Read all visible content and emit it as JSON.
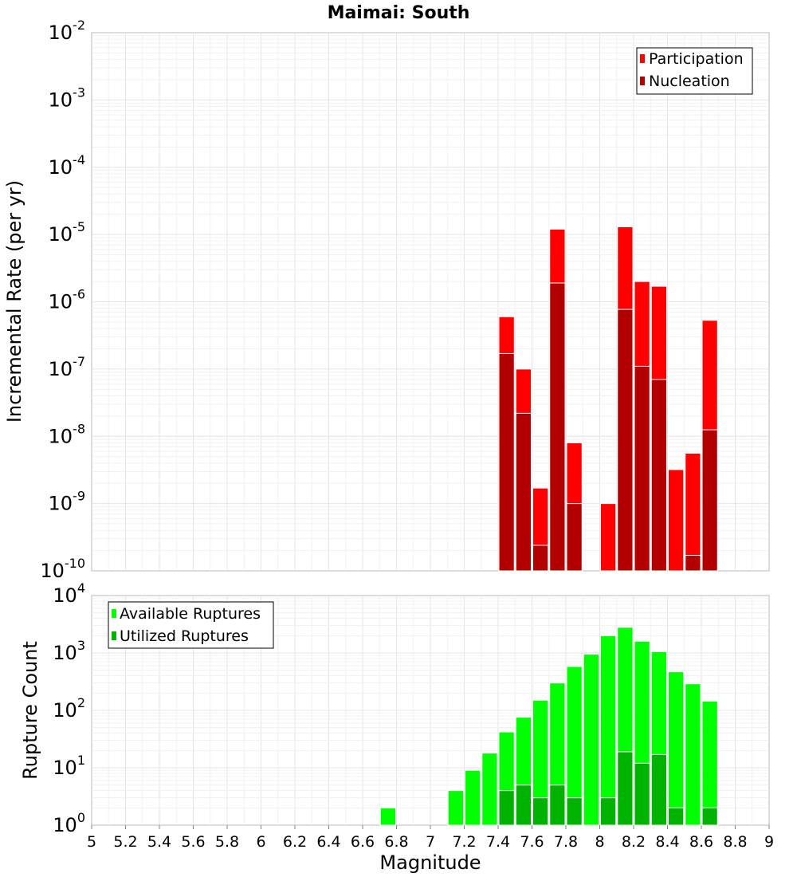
{
  "figure": {
    "title": "Maimai: South"
  },
  "chart_data": [
    {
      "type": "bar",
      "title": "Maimai: South",
      "ylabel": "Incremental Rate (per yr)",
      "xlabel": "",
      "yscale": "log",
      "ylim_exp": [
        -10,
        -2
      ],
      "xlim": [
        5,
        9
      ],
      "grid": true,
      "legend_placement": "top-right",
      "series": [
        {
          "name": "Participation",
          "color": "#ff0000",
          "points": [
            {
              "x": 7.45,
              "y": 6e-07
            },
            {
              "x": 7.55,
              "y": 1e-07
            },
            {
              "x": 7.65,
              "y": 1.7e-09
            },
            {
              "x": 7.75,
              "y": 1.2e-05
            },
            {
              "x": 7.85,
              "y": 8e-09
            },
            {
              "x": 8.05,
              "y": 1e-09
            },
            {
              "x": 8.15,
              "y": 1.3e-05
            },
            {
              "x": 8.25,
              "y": 2e-06
            },
            {
              "x": 8.35,
              "y": 1.7e-06
            },
            {
              "x": 8.45,
              "y": 3.2e-09
            },
            {
              "x": 8.55,
              "y": 5.6e-09
            },
            {
              "x": 8.65,
              "y": 5.3e-07
            }
          ]
        },
        {
          "name": "Nucleation",
          "color": "#b20000",
          "points": [
            {
              "x": 7.45,
              "y": 1.7e-07
            },
            {
              "x": 7.55,
              "y": 2.2e-08
            },
            {
              "x": 7.65,
              "y": 2.4e-10
            },
            {
              "x": 7.75,
              "y": 1.9e-06
            },
            {
              "x": 7.85,
              "y": 1e-09
            },
            {
              "x": 8.15,
              "y": 7.7e-07
            },
            {
              "x": 8.25,
              "y": 1.1e-07
            },
            {
              "x": 8.35,
              "y": 7e-08
            },
            {
              "x": 8.55,
              "y": 1.7e-10
            },
            {
              "x": 8.65,
              "y": 1.25e-08
            }
          ]
        }
      ]
    },
    {
      "type": "bar",
      "title": "",
      "ylabel": "Rupture Count",
      "xlabel": "Magnitude",
      "yscale": "log",
      "ylim_exp": [
        0,
        4
      ],
      "xlim": [
        5,
        9
      ],
      "xticks": [
        "5",
        "5.2",
        "5.4",
        "5.6",
        "5.8",
        "6",
        "6.2",
        "6.4",
        "6.6",
        "6.8",
        "7",
        "7.2",
        "7.4",
        "7.6",
        "7.8",
        "8",
        "8.2",
        "8.4",
        "8.6",
        "8.8",
        "9"
      ],
      "grid": true,
      "legend_placement": "top-left",
      "series": [
        {
          "name": "Available Ruptures",
          "color": "#00ff00",
          "points": [
            {
              "x": 6.75,
              "y": 2
            },
            {
              "x": 6.95,
              "y": 1
            },
            {
              "x": 7.15,
              "y": 4
            },
            {
              "x": 7.25,
              "y": 9
            },
            {
              "x": 7.35,
              "y": 18
            },
            {
              "x": 7.45,
              "y": 42
            },
            {
              "x": 7.55,
              "y": 76
            },
            {
              "x": 7.65,
              "y": 150
            },
            {
              "x": 7.75,
              "y": 300
            },
            {
              "x": 7.85,
              "y": 580
            },
            {
              "x": 7.95,
              "y": 950
            },
            {
              "x": 8.05,
              "y": 2000
            },
            {
              "x": 8.15,
              "y": 2800
            },
            {
              "x": 8.25,
              "y": 1600
            },
            {
              "x": 8.35,
              "y": 1050
            },
            {
              "x": 8.45,
              "y": 470
            },
            {
              "x": 8.55,
              "y": 290
            },
            {
              "x": 8.65,
              "y": 145
            }
          ]
        },
        {
          "name": "Utilized Ruptures",
          "color": "#00b200",
          "points": [
            {
              "x": 7.45,
              "y": 4
            },
            {
              "x": 7.55,
              "y": 5
            },
            {
              "x": 7.65,
              "y": 3
            },
            {
              "x": 7.75,
              "y": 5
            },
            {
              "x": 7.85,
              "y": 3
            },
            {
              "x": 8.05,
              "y": 3
            },
            {
              "x": 8.15,
              "y": 19
            },
            {
              "x": 8.25,
              "y": 12
            },
            {
              "x": 8.35,
              "y": 17
            },
            {
              "x": 8.45,
              "y": 2
            },
            {
              "x": 8.55,
              "y": 1
            },
            {
              "x": 8.65,
              "y": 2
            }
          ]
        }
      ]
    }
  ]
}
